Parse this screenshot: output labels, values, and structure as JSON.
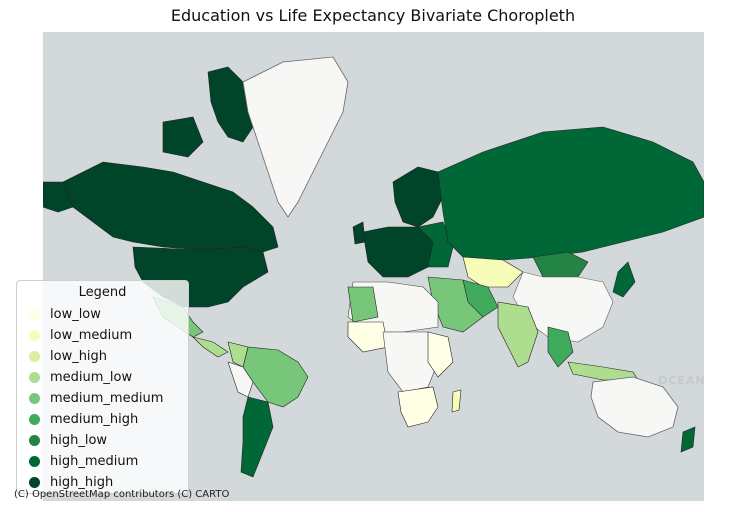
{
  "title": "Education vs Life Expectancy Bivariate Choropleth",
  "legend": {
    "title": "Legend",
    "items": [
      {
        "label": "low_low",
        "color": "#ffffe5"
      },
      {
        "label": "low_medium",
        "color": "#f7fcb9"
      },
      {
        "label": "low_high",
        "color": "#d9f0a3"
      },
      {
        "label": "medium_low",
        "color": "#addd8e"
      },
      {
        "label": "medium_medium",
        "color": "#78c679"
      },
      {
        "label": "medium_high",
        "color": "#41ab5d"
      },
      {
        "label": "high_low",
        "color": "#238443"
      },
      {
        "label": "high_medium",
        "color": "#006837"
      },
      {
        "label": "high_high",
        "color": "#004529"
      }
    ]
  },
  "no_data_color": "#f7f7f5",
  "ocean_color": "#d3d8db",
  "attribution": "(C) OpenStreetMap contributors (C) CARTO",
  "basemap_labels": {
    "ocean_east": "OCEAN"
  }
}
